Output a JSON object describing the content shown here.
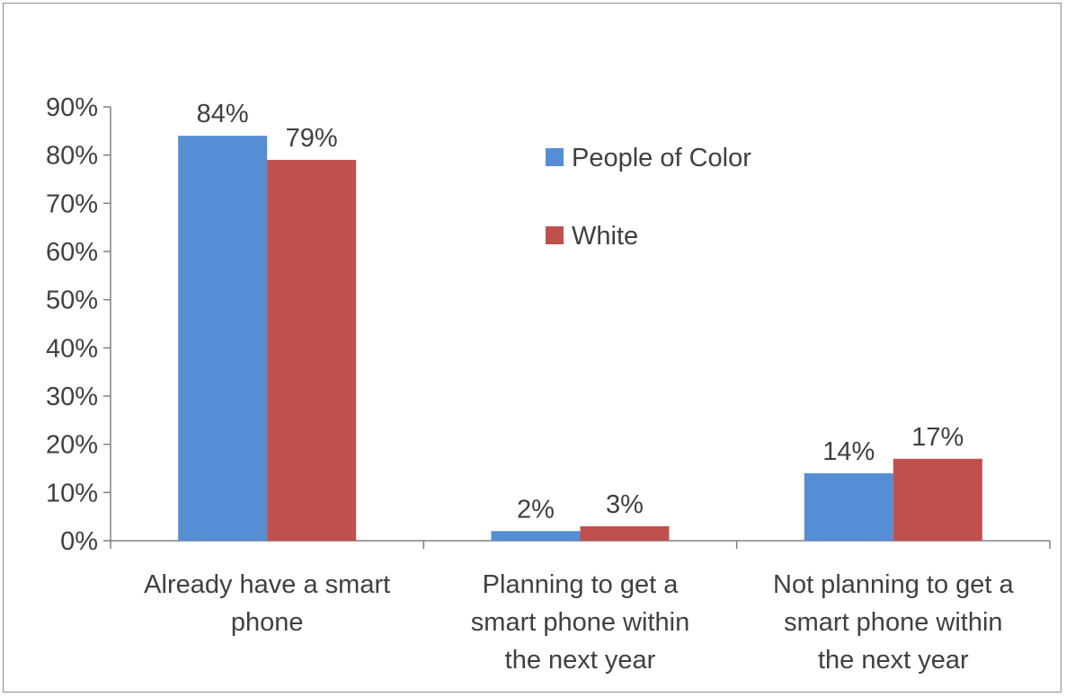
{
  "chart_data": {
    "type": "bar",
    "categories": [
      [
        "Already have a smart",
        "phone"
      ],
      [
        "Planning to get a",
        "smart phone within",
        "the next year"
      ],
      [
        "Not planning to get a",
        "smart phone within",
        "the next year"
      ]
    ],
    "series": [
      {
        "name": "People of Color",
        "values": [
          84,
          2,
          14
        ],
        "labels": [
          "84%",
          "2%",
          "14%"
        ],
        "color": "#558ed5"
      },
      {
        "name": "White",
        "values": [
          79,
          3,
          17
        ],
        "labels": [
          "79%",
          "3%",
          "17%"
        ],
        "color": "#c0504d"
      }
    ],
    "y_ticks": [
      "0%",
      "10%",
      "20%",
      "30%",
      "40%",
      "50%",
      "60%",
      "70%",
      "80%",
      "90%"
    ],
    "ylim": [
      0,
      90
    ],
    "grid": false,
    "legend_position": "inside-top-right"
  }
}
